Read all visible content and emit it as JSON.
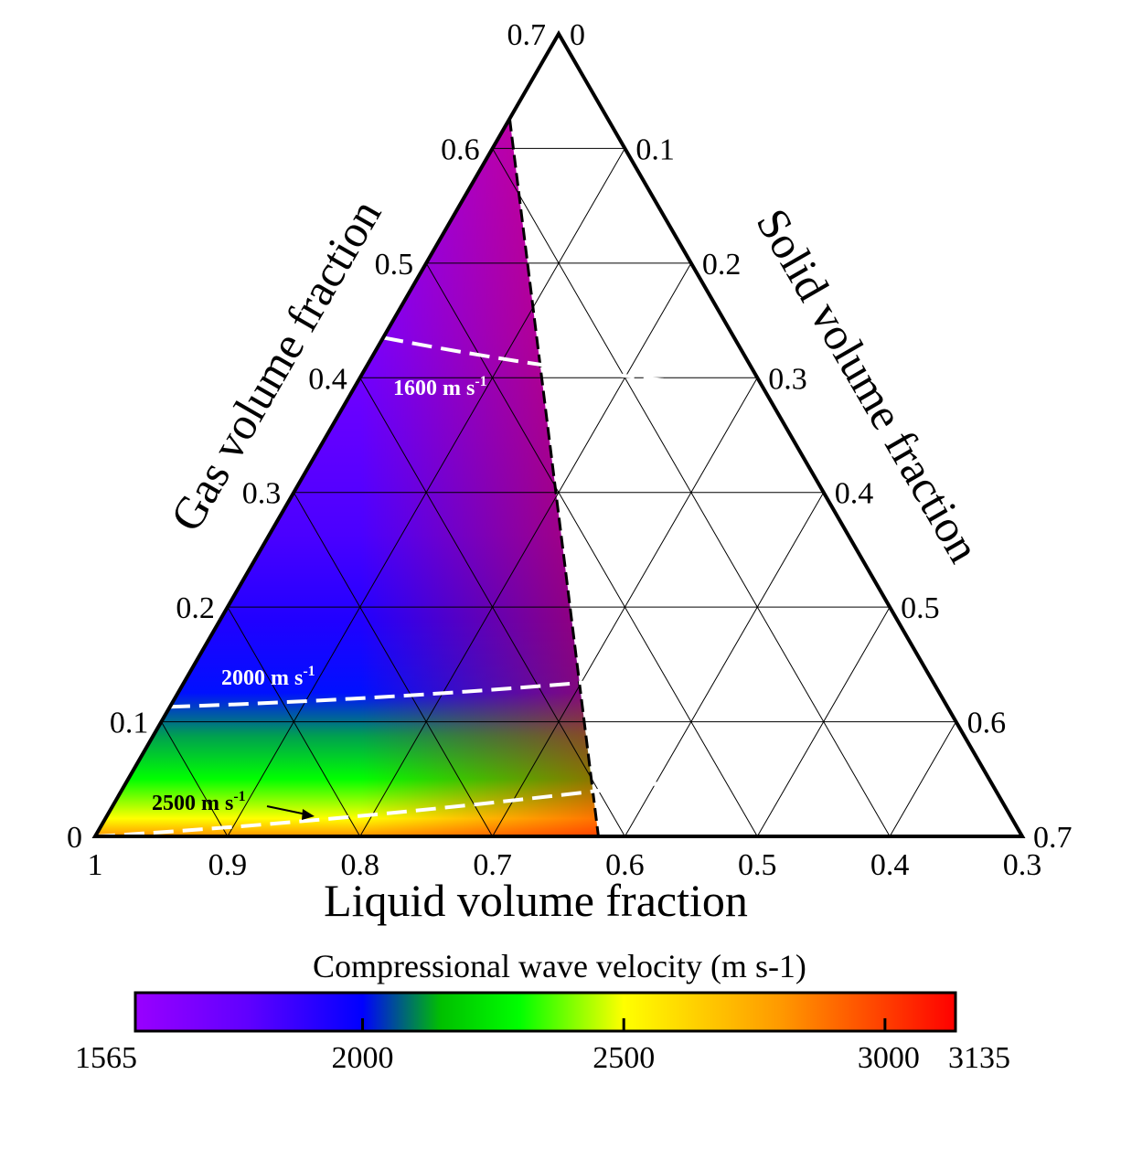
{
  "chart_data": {
    "type": "ternary-heatmap",
    "axes": {
      "bottom": {
        "label": "Liquid volume fraction",
        "ticks": [
          "1",
          "0.9",
          "0.8",
          "0.7",
          "0.6",
          "0.5",
          "0.4",
          "0.3"
        ]
      },
      "left": {
        "label": "Gas volume fraction",
        "ticks": [
          "0",
          "0.1",
          "0.2",
          "0.3",
          "0.4",
          "0.5",
          "0.6",
          "0.7"
        ]
      },
      "right": {
        "label": "Solid volume fraction",
        "ticks": [
          "0",
          "0.1",
          "0.2",
          "0.3",
          "0.4",
          "0.5",
          "0.6",
          "0.7"
        ]
      }
    },
    "valid_region_boundary": [
      [
        0,
        0.626
      ],
      [
        0.38,
        0.0
      ]
    ],
    "color_scale": {
      "title": "Compressional wave velocity (m s-1)",
      "min": 1565,
      "max": 3135,
      "ticks": [
        {
          "value": 1565,
          "label": "1565"
        },
        {
          "value": 2000,
          "label": "2000"
        },
        {
          "value": 2500,
          "label": "2500"
        },
        {
          "value": 3000,
          "label": "3000"
        },
        {
          "value": 3135,
          "label": "3135"
        }
      ],
      "stops": [
        {
          "value": 1565,
          "color": "#9900ff"
        },
        {
          "value": 1780,
          "color": "#6000ff"
        },
        {
          "value": 2000,
          "color": "#0000ff"
        },
        {
          "value": 2150,
          "color": "#00c000"
        },
        {
          "value": 2300,
          "color": "#00ff00"
        },
        {
          "value": 2500,
          "color": "#ffff00"
        },
        {
          "value": 2800,
          "color": "#ff9900"
        },
        {
          "value": 3135,
          "color": "#ff0000"
        }
      ]
    },
    "contours": [
      {
        "value": 1600,
        "label_main": "1600 m s",
        "label_exp": "-1",
        "label_color": "#ffffff",
        "points": [
          [
            0,
            0.435
          ],
          [
            0.15,
            0.405
          ],
          [
            0.26,
            0.395
          ]
        ]
      },
      {
        "value": 2000,
        "label_main": "2000 m s",
        "label_exp": "-1",
        "label_color": "#ffffff",
        "points": [
          [
            0,
            0.113
          ],
          [
            0.2,
            0.121
          ],
          [
            0.38,
            0.143
          ]
        ]
      },
      {
        "value": 2500,
        "label_main": "2500 m s",
        "label_exp": "-1",
        "label_color": "#000000",
        "points": [
          [
            0,
            0.0
          ],
          [
            0.2,
            0.014
          ],
          [
            0.44,
            0.052
          ]
        ]
      }
    ]
  }
}
